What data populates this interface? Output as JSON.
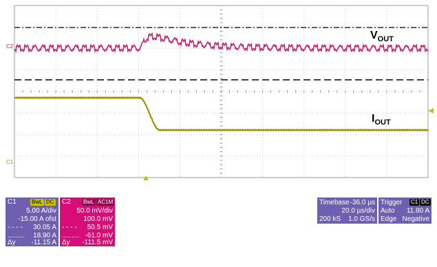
{
  "traces": {
    "c2_marker": "C2",
    "c1_marker": "C1",
    "vout_label": "V",
    "vout_sub": "OUT",
    "iout_label": "I",
    "iout_sub": "OUT",
    "vout_color": "#d0186b",
    "iout_color": "#9a9400"
  },
  "c1_panel": {
    "name": "C1",
    "badge1": "BwL",
    "badge2": "DC",
    "scale": "5.00 A/div",
    "offset": "-15.00 A ofst",
    "cursor1": "30.05 A",
    "cursor2": "18.90 A",
    "delta_label": "Δy",
    "delta": "-11.15 A",
    "color": "#6f5fb0",
    "header_color": "#c9c200"
  },
  "c2_panel": {
    "name": "C2",
    "badge1": "BwL",
    "badge2": "AC1M",
    "scale": "50.0 mV/div",
    "offset": "100.0 mV",
    "cursor1": "50.5 mV",
    "cursor2": "-61.0 mV",
    "delta_label": "Δy",
    "delta": "-111.5 mV",
    "color": "#d60c78"
  },
  "timebase_panel": {
    "title": "Timebase",
    "delay": "-36.0 µs",
    "scale": "20.0 µs/div",
    "samples": "200 kS",
    "rate": "1.0 GS/s",
    "color": "#6f5fb0"
  },
  "trigger_panel": {
    "title": "Trigger",
    "badge1": "C1",
    "badge2": "DC",
    "mode": "Auto",
    "level": "11.80 A",
    "type": "Edge",
    "slope": "Negative",
    "color": "#6f5fb0"
  }
}
